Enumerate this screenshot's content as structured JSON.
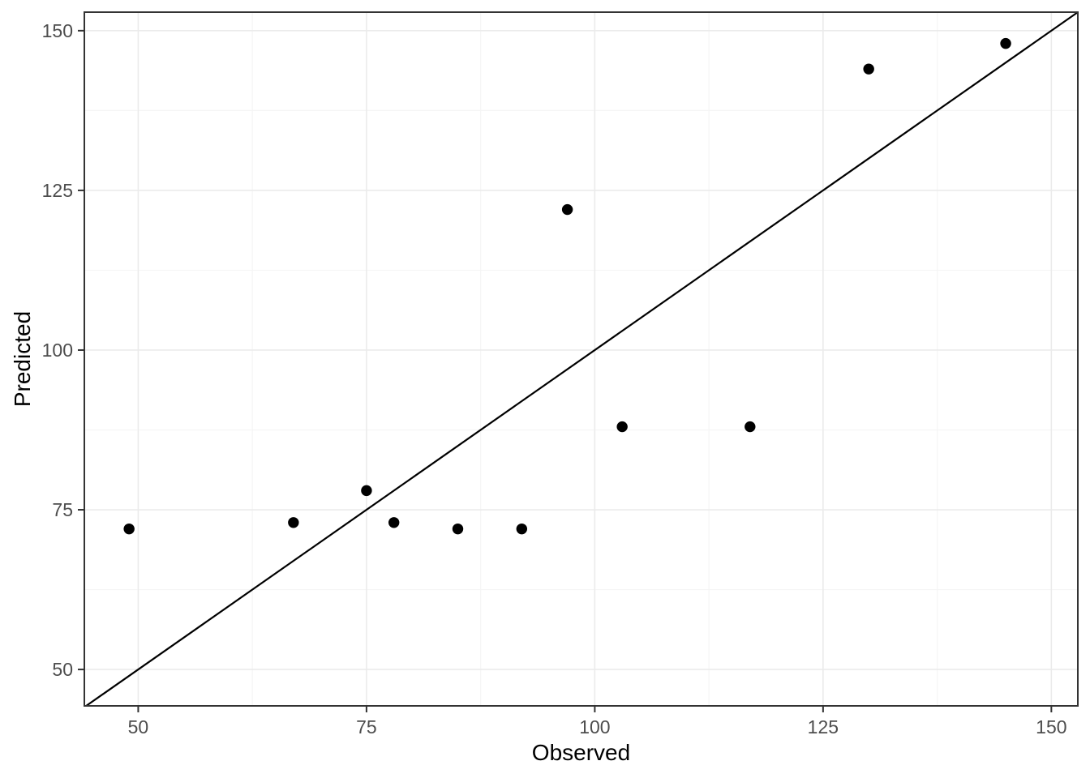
{
  "chart_data": {
    "type": "scatter",
    "title": "",
    "xlabel": "Observed",
    "ylabel": "Predicted",
    "xlim": [
      44.1,
      152.9
    ],
    "ylim": [
      44.3,
      152.9
    ],
    "x_ticks": [
      50,
      75,
      100,
      125,
      150
    ],
    "y_ticks": [
      50,
      75,
      100,
      125,
      150
    ],
    "x_minor": [
      62.5,
      87.5,
      112.5,
      137.5
    ],
    "y_minor": [
      62.5,
      87.5,
      112.5,
      137.5
    ],
    "grid": "on",
    "legend": "none",
    "points": [
      {
        "observed": 49,
        "predicted": 72
      },
      {
        "observed": 67,
        "predicted": 73
      },
      {
        "observed": 75,
        "predicted": 78
      },
      {
        "observed": 78,
        "predicted": 73
      },
      {
        "observed": 85,
        "predicted": 72
      },
      {
        "observed": 92,
        "predicted": 72
      },
      {
        "observed": 97,
        "predicted": 122
      },
      {
        "observed": 103,
        "predicted": 88
      },
      {
        "observed": 117,
        "predicted": 88
      },
      {
        "observed": 130,
        "predicted": 144
      },
      {
        "observed": 145,
        "predicted": 148
      }
    ],
    "reference_line": {
      "kind": "identity",
      "slope": 1,
      "intercept": 0
    }
  },
  "colors": {
    "background": "#ffffff",
    "panel_background": "#ffffff",
    "grid_major": "#ebebeb",
    "grid_minor": "#f5f5f5",
    "panel_border": "#333333",
    "tick_mark": "#333333",
    "tick_label": "#4d4d4d",
    "axis_title": "#000000",
    "point": "#000000",
    "reference_line": "#000000"
  }
}
